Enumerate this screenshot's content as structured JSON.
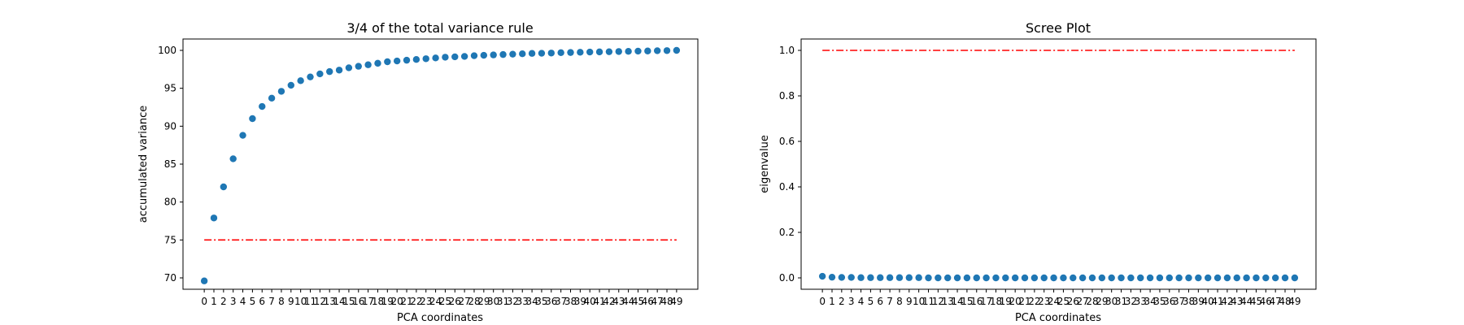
{
  "chart_data": [
    {
      "type": "scatter",
      "title": "3/4 of the total variance rule",
      "xlabel": "PCA coordinates",
      "ylabel": "accumulated variance",
      "x": [
        0,
        1,
        2,
        3,
        4,
        5,
        6,
        7,
        8,
        9,
        10,
        11,
        12,
        13,
        14,
        15,
        16,
        17,
        18,
        19,
        20,
        21,
        22,
        23,
        24,
        25,
        26,
        27,
        28,
        29,
        30,
        31,
        32,
        33,
        34,
        35,
        36,
        37,
        38,
        39,
        40,
        41,
        42,
        43,
        44,
        45,
        46,
        47,
        48,
        49
      ],
      "y": [
        69.6,
        77.9,
        82.0,
        85.7,
        88.8,
        91.0,
        92.6,
        93.7,
        94.6,
        95.4,
        96.0,
        96.5,
        96.9,
        97.2,
        97.4,
        97.7,
        97.9,
        98.1,
        98.3,
        98.5,
        98.6,
        98.7,
        98.8,
        98.9,
        99.0,
        99.1,
        99.15,
        99.2,
        99.3,
        99.35,
        99.4,
        99.45,
        99.5,
        99.55,
        99.6,
        99.62,
        99.65,
        99.7,
        99.72,
        99.75,
        99.78,
        99.8,
        99.82,
        99.85,
        99.87,
        99.9,
        99.92,
        99.95,
        99.97,
        100.0
      ],
      "reference_line": {
        "y": 75,
        "x_range": [
          0,
          49
        ],
        "color": "#ff0000",
        "style": "dash-dot"
      },
      "ylim": [
        68.5,
        101.5
      ],
      "yticks": [
        70,
        75,
        80,
        85,
        90,
        95,
        100
      ],
      "point_color": "#1f77b4",
      "grid": false,
      "legend": "none"
    },
    {
      "type": "scatter",
      "title": "Scree Plot",
      "xlabel": "PCA coordinates",
      "ylabel": "eigenvalue",
      "x": [
        0,
        1,
        2,
        3,
        4,
        5,
        6,
        7,
        8,
        9,
        10,
        11,
        12,
        13,
        14,
        15,
        16,
        17,
        18,
        19,
        20,
        21,
        22,
        23,
        24,
        25,
        26,
        27,
        28,
        29,
        30,
        31,
        32,
        33,
        34,
        35,
        36,
        37,
        38,
        39,
        40,
        41,
        42,
        43,
        44,
        45,
        46,
        47,
        48,
        49
      ],
      "y": [
        0.007,
        0.003,
        0.002,
        0.002,
        0.001,
        0.001,
        0.001,
        0.001,
        0.001,
        0.001,
        0.001,
        0.0,
        0.0,
        0.0,
        0.0,
        0.0,
        0.0,
        0.0,
        0.0,
        0.0,
        0.0,
        0.0,
        0.0,
        0.0,
        0.0,
        0.0,
        0.0,
        0.0,
        0.0,
        0.0,
        0.0,
        0.0,
        0.0,
        0.0,
        0.0,
        0.0,
        0.0,
        0.0,
        0.0,
        0.0,
        0.0,
        0.0,
        0.0,
        0.0,
        0.0,
        0.0,
        0.0,
        0.0,
        0.0,
        0.0
      ],
      "reference_line": {
        "y": 1.0,
        "x_range": [
          0,
          49
        ],
        "color": "#ff0000",
        "style": "dash-dot"
      },
      "ylim": [
        -0.05,
        1.05
      ],
      "yticks": [
        0.0,
        0.2,
        0.4,
        0.6,
        0.8,
        1.0
      ],
      "ytick_labels": [
        "0.0",
        "0.2",
        "0.4",
        "0.6",
        "0.8",
        "1.0"
      ],
      "point_color": "#1f77b4",
      "grid": false,
      "legend": "none"
    }
  ]
}
